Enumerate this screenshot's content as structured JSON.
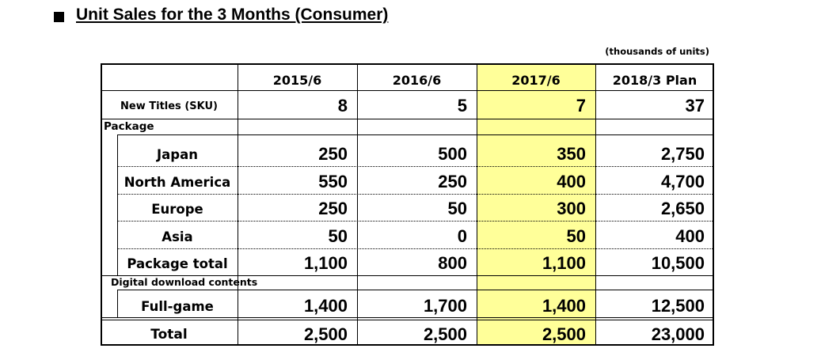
{
  "header": {
    "title": "Unit Sales for the 3 Months (Consumer)",
    "unit_note": "(thousands of units)"
  },
  "table": {
    "columns": [
      "2015/6",
      "2016/6",
      "2017/6",
      "2018/3 Plan"
    ],
    "new_titles": {
      "label": "New Titles (SKU)",
      "values": [
        "8",
        "5",
        "7",
        "37"
      ]
    },
    "package": {
      "label": "Package",
      "rows": [
        {
          "label": "Japan",
          "values": [
            "250",
            "500",
            "350",
            "2,750"
          ]
        },
        {
          "label": "North America",
          "values": [
            "550",
            "250",
            "400",
            "4,700"
          ]
        },
        {
          "label": "Europe",
          "values": [
            "250",
            "50",
            "300",
            "2,650"
          ]
        },
        {
          "label": "Asia",
          "values": [
            "50",
            "0",
            "50",
            "400"
          ]
        }
      ],
      "total": {
        "label": "Package total",
        "values": [
          "1,100",
          "800",
          "1,100",
          "10,500"
        ]
      }
    },
    "digital": {
      "label": "Digital download contents",
      "rows": [
        {
          "label": "Full-game",
          "values": [
            "1,400",
            "1,700",
            "1,400",
            "12,500"
          ]
        }
      ]
    },
    "total": {
      "label": "Total",
      "values": [
        "2,500",
        "2,500",
        "2,500",
        "23,000"
      ]
    }
  }
}
